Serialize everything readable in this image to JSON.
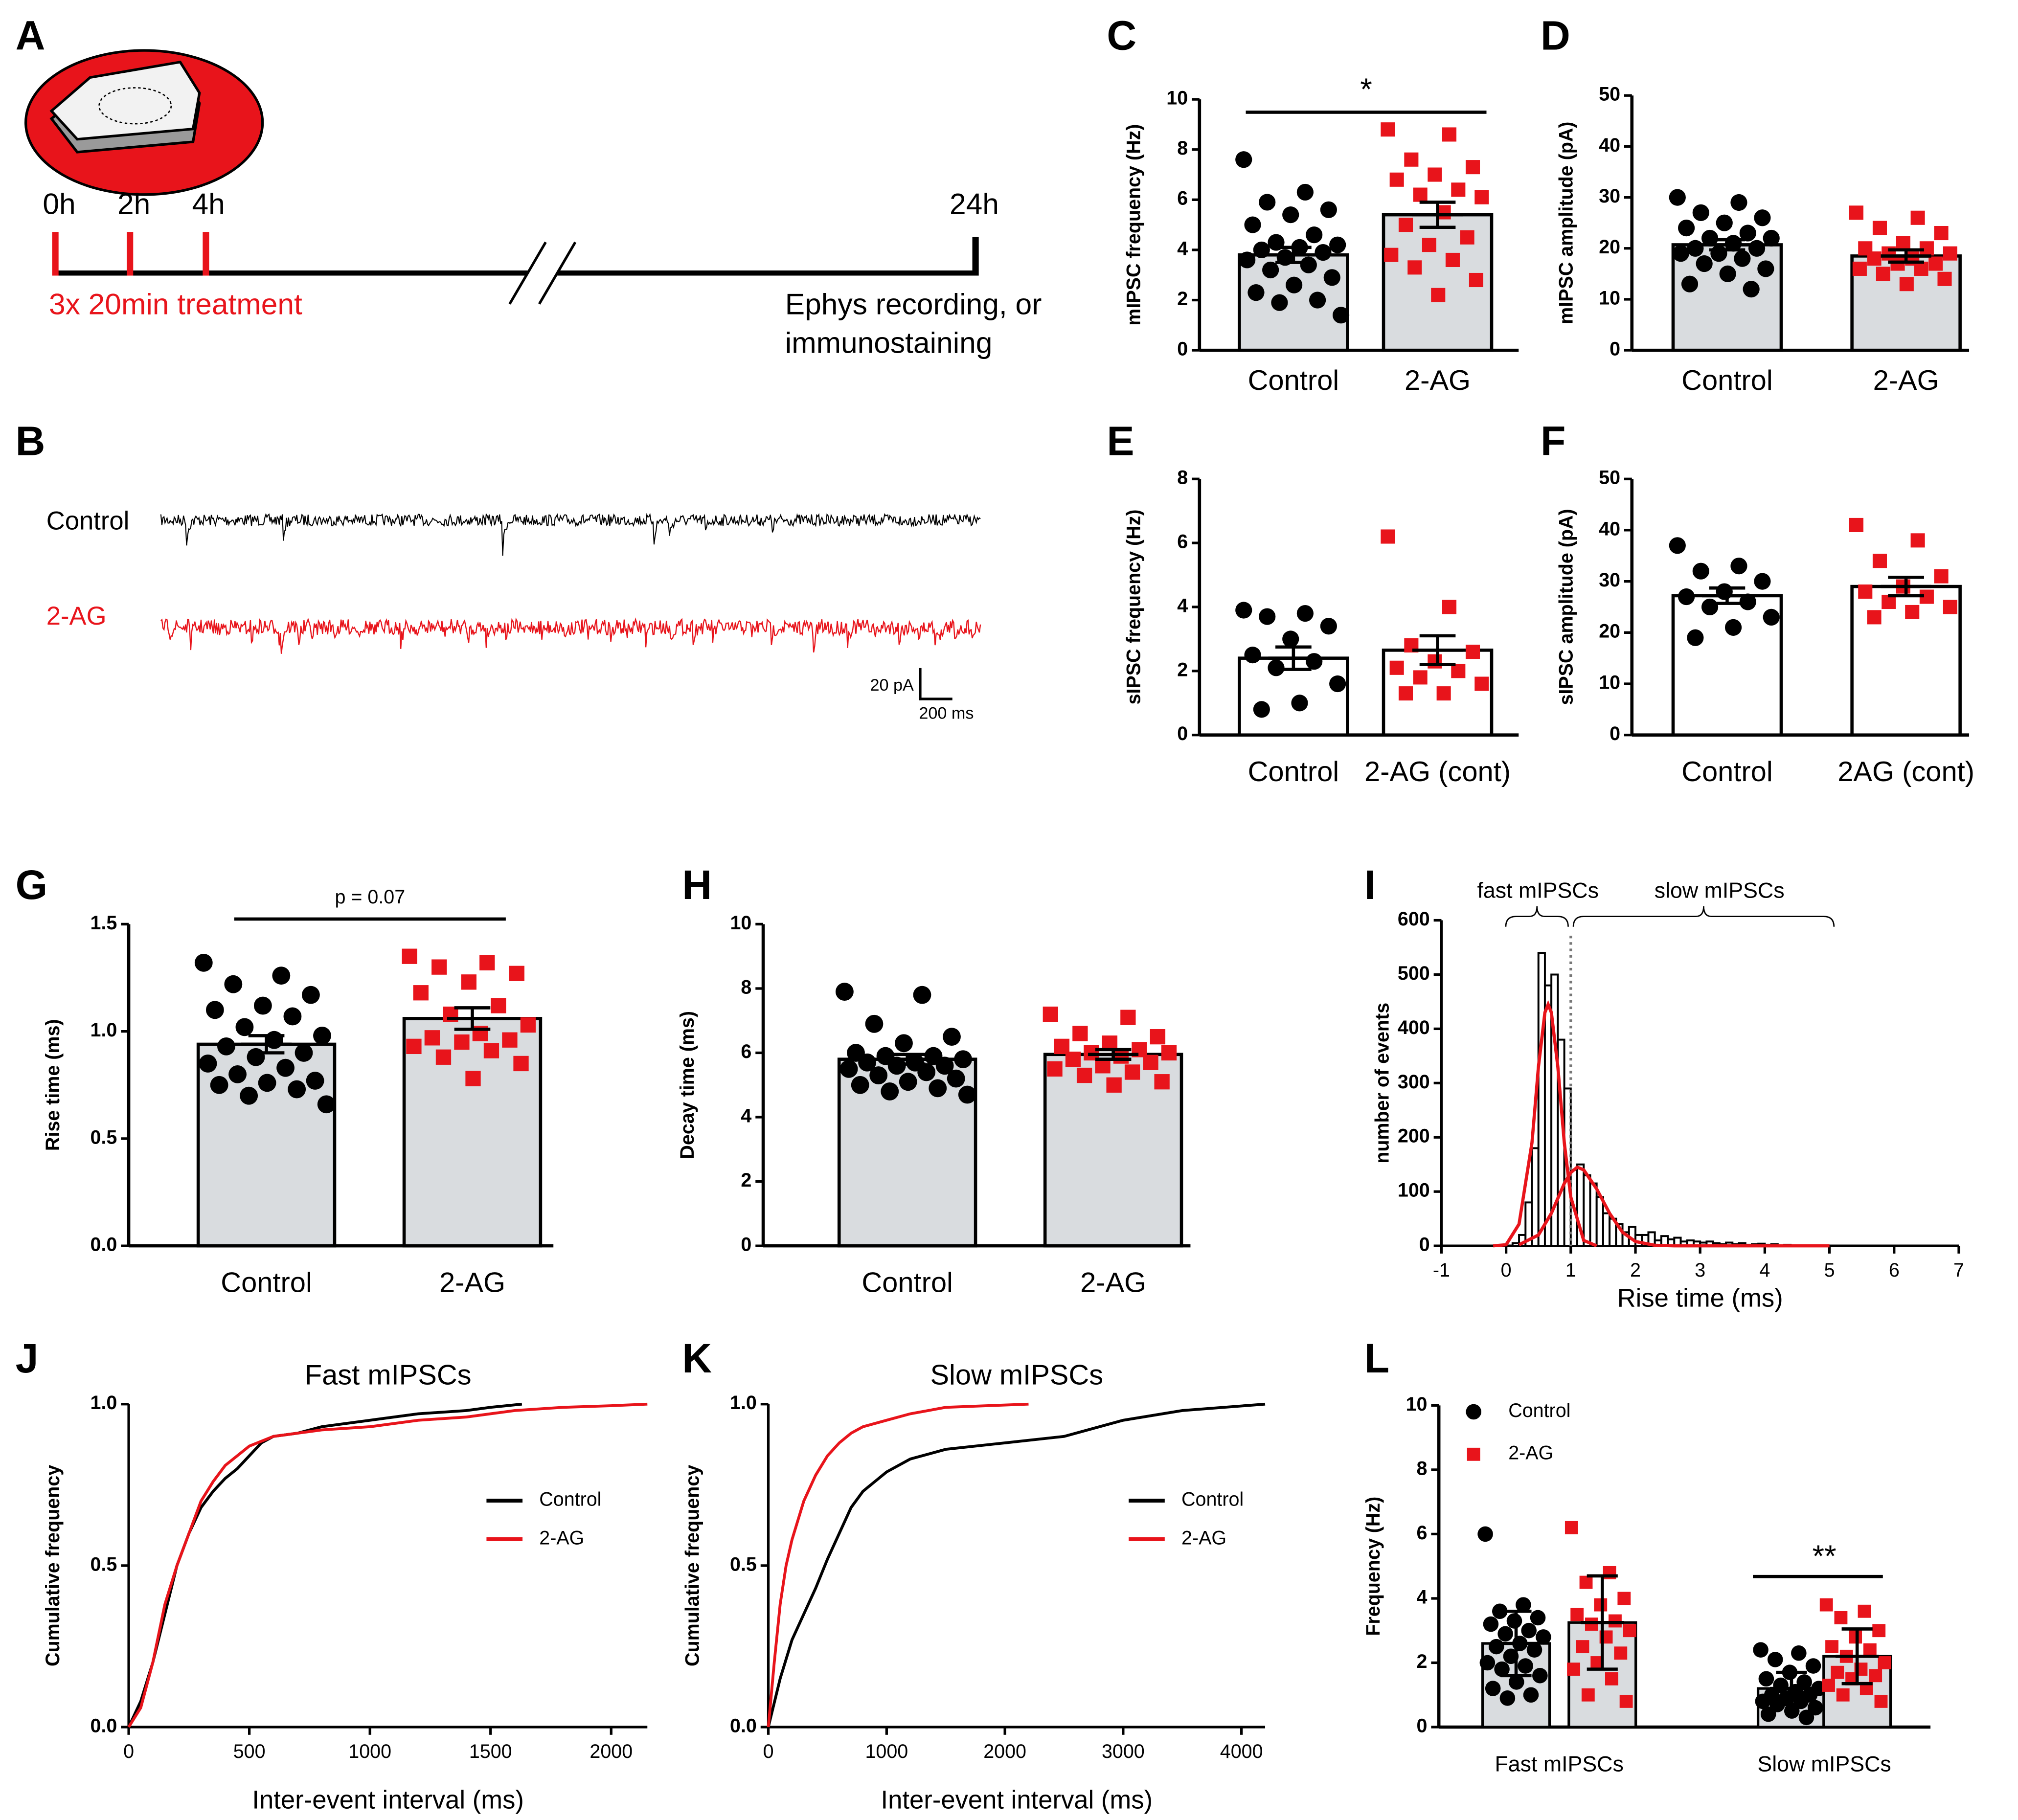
{
  "panel_letters": [
    "A",
    "B",
    "C",
    "D",
    "E",
    "F",
    "G",
    "H",
    "I",
    "J",
    "K",
    "L"
  ],
  "timeline": {
    "time_labels": [
      "0h",
      "2h",
      "4h",
      "24h"
    ],
    "treatment": "3x 20min treatment",
    "readout": [
      "Ephys recording, or",
      "immunostaining"
    ]
  },
  "traces": {
    "labels": [
      "Control",
      "2-AG"
    ],
    "colors": [
      "#000000",
      "#e8141b"
    ],
    "scale_y": "20 pA",
    "scale_x": "200 ms"
  },
  "chart_data": [
    {
      "type": "dot_bar",
      "ylabel": "mIPSC frequency (Hz)",
      "categories": [
        "Control",
        "2-AG"
      ],
      "values": [
        3.8,
        5.4
      ],
      "errors": [
        0.3,
        0.5
      ],
      "colors": [
        "#000000",
        "#e8141b"
      ],
      "markers": [
        "circle",
        "square"
      ],
      "bar_color": "#d9dcdf",
      "points": [
        [
          7.6,
          6.3,
          5.9,
          5.6,
          5.4,
          5.0,
          4.6,
          4.3,
          4.2,
          4.1,
          4.0,
          3.9,
          3.7,
          3.6,
          3.4,
          3.2,
          2.9,
          2.6,
          2.3,
          2.0,
          1.9,
          1.4
        ],
        [
          8.8,
          8.6,
          7.6,
          7.3,
          7.0,
          6.8,
          6.4,
          6.2,
          6.1,
          5.5,
          5.0,
          4.5,
          4.2,
          3.8,
          3.6,
          3.3,
          2.8,
          2.2
        ]
      ],
      "ylim": [
        0,
        10
      ],
      "yticks": [
        0,
        2,
        4,
        6,
        8,
        10
      ],
      "significance": "*"
    },
    {
      "type": "dot_bar",
      "ylabel": "mIPSC amplitude (pA)",
      "categories": [
        "Control",
        "2-AG"
      ],
      "values": [
        20.7,
        18.5
      ],
      "errors": [
        1.0,
        1.2
      ],
      "colors": [
        "#000000",
        "#e8141b"
      ],
      "markers": [
        "circle",
        "square"
      ],
      "bar_color": "#d9dcdf",
      "points": [
        [
          30,
          29,
          27,
          26,
          25,
          24,
          23,
          22,
          22,
          21,
          20,
          20,
          19,
          19,
          18,
          17,
          16,
          15,
          13,
          12
        ],
        [
          27,
          26,
          24,
          23,
          21,
          20,
          20,
          19,
          19,
          18,
          18,
          17,
          17,
          16,
          16,
          15,
          14,
          13
        ]
      ],
      "ylim": [
        0,
        50
      ],
      "yticks": [
        0,
        10,
        20,
        30,
        40,
        50
      ]
    },
    {
      "type": "dot_bar",
      "ylabel": "sIPSC frequency (Hz)",
      "categories": [
        "Control",
        "2-AG (cont)"
      ],
      "values": [
        2.4,
        2.65
      ],
      "errors": [
        0.35,
        0.45
      ],
      "colors": [
        "#000000",
        "#e8141b"
      ],
      "markers": [
        "circle",
        "square"
      ],
      "bar_color": "#ffffff",
      "points": [
        [
          3.9,
          3.8,
          3.7,
          3.4,
          3.0,
          2.5,
          2.3,
          2.1,
          1.6,
          1.0,
          0.8
        ],
        [
          6.2,
          4.0,
          2.8,
          2.6,
          2.3,
          2.1,
          2.0,
          1.8,
          1.6,
          1.3,
          1.3
        ]
      ],
      "ylim": [
        0,
        8
      ],
      "yticks": [
        0,
        2,
        4,
        6,
        8
      ]
    },
    {
      "type": "dot_bar",
      "ylabel": "sIPSC amplitude (pA)",
      "categories": [
        "Control",
        "2AG (cont)"
      ],
      "values": [
        27.2,
        29
      ],
      "errors": [
        1.5,
        1.8
      ],
      "colors": [
        "#000000",
        "#e8141b"
      ],
      "markers": [
        "circle",
        "square"
      ],
      "bar_color": "#ffffff",
      "points": [
        [
          37,
          33,
          32,
          30,
          28,
          27,
          26,
          25,
          23,
          21,
          19
        ],
        [
          41,
          38,
          34,
          31,
          29,
          28,
          27,
          26,
          25,
          24,
          23
        ]
      ],
      "ylim": [
        0,
        50
      ],
      "yticks": [
        0,
        10,
        20,
        30,
        40,
        50
      ]
    },
    {
      "type": "dot_bar",
      "ylabel": "Rise time (ms)",
      "categories": [
        "Control",
        "2-AG"
      ],
      "values": [
        0.94,
        1.06
      ],
      "errors": [
        0.04,
        0.05
      ],
      "colors": [
        "#000000",
        "#e8141b"
      ],
      "markers": [
        "circle",
        "square"
      ],
      "bar_color": "#d9dcdf",
      "points": [
        [
          1.32,
          1.26,
          1.22,
          1.17,
          1.12,
          1.1,
          1.07,
          1.02,
          0.98,
          0.96,
          0.93,
          0.9,
          0.88,
          0.85,
          0.83,
          0.8,
          0.77,
          0.76,
          0.75,
          0.73,
          0.7,
          0.66
        ],
        [
          1.35,
          1.32,
          1.3,
          1.27,
          1.23,
          1.18,
          1.12,
          1.08,
          1.03,
          0.99,
          0.97,
          0.96,
          0.95,
          0.93,
          0.91,
          0.88,
          0.85,
          0.78
        ]
      ],
      "ylim": [
        0,
        1.5
      ],
      "yticks": [
        {
          "value": 0,
          "label": "0.0"
        },
        0.5,
        {
          "value": 1,
          "label": "1.0"
        },
        1.5
      ],
      "significance": "p = 0.07"
    },
    {
      "type": "dot_bar",
      "ylabel": "Decay time (ms)",
      "categories": [
        "Control",
        "2-AG"
      ],
      "values": [
        5.8,
        5.95
      ],
      "errors": [
        0.15,
        0.15
      ],
      "colors": [
        "#000000",
        "#e8141b"
      ],
      "markers": [
        "circle",
        "square"
      ],
      "bar_color": "#d9dcdf",
      "points": [
        [
          7.9,
          7.8,
          6.9,
          6.5,
          6.3,
          6.0,
          5.9,
          5.9,
          5.8,
          5.7,
          5.7,
          5.6,
          5.6,
          5.5,
          5.4,
          5.3,
          5.2,
          5.1,
          5.0,
          4.9,
          4.8,
          4.7
        ],
        [
          7.2,
          7.1,
          6.6,
          6.5,
          6.3,
          6.2,
          6.1,
          6.0,
          6.0,
          5.9,
          5.8,
          5.7,
          5.6,
          5.5,
          5.4,
          5.3,
          5.1,
          5.0
        ]
      ],
      "ylim": [
        0,
        10
      ],
      "yticks": [
        0,
        2,
        4,
        6,
        8,
        10
      ]
    },
    {
      "type": "histogram",
      "xlabel": "Rise time (ms)",
      "ylabel": "number of events",
      "color": "#000000",
      "bins": [
        0,
        0.1,
        0.2,
        0.3,
        0.4,
        0.5,
        0.6,
        0.7,
        0.8,
        0.9,
        1.0,
        1.1,
        1.2,
        1.3,
        1.4,
        1.5,
        1.6,
        1.7,
        1.8,
        1.9,
        2.0,
        2.1,
        2.2,
        2.3,
        2.4,
        2.5,
        2.6,
        2.7,
        2.8,
        2.9,
        3.0,
        3.1,
        3.2,
        3.3,
        3.4,
        3.5,
        3.6,
        3.7,
        3.8,
        3.9,
        4.0,
        4.1,
        4.2,
        4.3,
        4.4,
        4.5,
        4.6,
        4.7,
        4.8,
        4.9,
        5.0
      ],
      "values": [
        0,
        5,
        20,
        80,
        180,
        540,
        480,
        500,
        380,
        290,
        140,
        150,
        130,
        115,
        90,
        60,
        50,
        40,
        25,
        35,
        20,
        20,
        25,
        10,
        18,
        12,
        15,
        8,
        10,
        8,
        6,
        8,
        5,
        3,
        6,
        3,
        5,
        2,
        3,
        4,
        2,
        3,
        1,
        2,
        1,
        1,
        1,
        0,
        1,
        0
      ],
      "curves": [
        {
          "color": "#e8141b",
          "x": [
            -0.2,
            0,
            0.2,
            0.4,
            0.5,
            0.6,
            0.65,
            0.7,
            0.8,
            0.9,
            1.0,
            1.2,
            1.4
          ],
          "values": [
            0,
            2,
            40,
            190,
            330,
            430,
            445,
            430,
            330,
            190,
            90,
            10,
            0
          ]
        },
        {
          "color": "#e8141b",
          "x": [
            0.2,
            0.5,
            0.7,
            0.9,
            1.0,
            1.1,
            1.2,
            1.4,
            1.6,
            1.8,
            2.0,
            2.3,
            2.6,
            5.0
          ],
          "values": [
            2,
            20,
            60,
            115,
            135,
            145,
            140,
            105,
            60,
            25,
            8,
            1,
            0,
            0
          ]
        }
      ],
      "threshold": 1,
      "annotations": [
        "fast mIPSCs",
        "slow mIPSCs"
      ],
      "xlim": [
        -1,
        7
      ],
      "xticks": [
        -1,
        0,
        1,
        2,
        3,
        4,
        5,
        6,
        7
      ],
      "ylim": [
        0,
        600
      ],
      "yticks": [
        0,
        100,
        200,
        300,
        400,
        500,
        600
      ]
    },
    {
      "type": "line",
      "title": "Fast mIPSCs",
      "xlabel": "Inter-event interval (ms)",
      "ylabel": "Cumulative frequency",
      "series": [
        {
          "name": "Control",
          "color": "#000000",
          "x": [
            0,
            50,
            100,
            150,
            200,
            250,
            300,
            350,
            400,
            450,
            500,
            550,
            600,
            700,
            800,
            1000,
            1200,
            1400,
            1500,
            1630
          ],
          "values": [
            0,
            0.08,
            0.2,
            0.35,
            0.5,
            0.6,
            0.68,
            0.73,
            0.77,
            0.8,
            0.84,
            0.88,
            0.9,
            0.91,
            0.93,
            0.95,
            0.97,
            0.98,
            0.99,
            1.0
          ]
        },
        {
          "name": "2-AG",
          "color": "#e8141b",
          "x": [
            0,
            50,
            100,
            150,
            200,
            250,
            300,
            350,
            400,
            450,
            500,
            600,
            700,
            800,
            1000,
            1200,
            1400,
            1600,
            1800,
            2000,
            2150
          ],
          "values": [
            0,
            0.06,
            0.2,
            0.38,
            0.5,
            0.6,
            0.7,
            0.76,
            0.81,
            0.84,
            0.87,
            0.9,
            0.91,
            0.92,
            0.93,
            0.95,
            0.96,
            0.98,
            0.99,
            0.995,
            1.0
          ]
        }
      ],
      "xlim": [
        0,
        2150
      ],
      "xticks": [
        0,
        500,
        1000,
        1500,
        2000
      ],
      "ylim": [
        0,
        1
      ],
      "yticks": [
        {
          "value": 0,
          "label": "0.0"
        },
        0.5,
        {
          "value": 1,
          "label": "1.0"
        }
      ],
      "legend": "right"
    },
    {
      "type": "line",
      "title": "Slow mIPSCs",
      "xlabel": "Inter-event interval (ms)",
      "ylabel": "Cumulative frequency",
      "series": [
        {
          "name": "Control",
          "color": "#000000",
          "x": [
            0,
            100,
            200,
            300,
            400,
            500,
            600,
            700,
            800,
            900,
            1000,
            1200,
            1500,
            2000,
            2500,
            3000,
            3500,
            4200
          ],
          "values": [
            0,
            0.15,
            0.27,
            0.35,
            0.43,
            0.52,
            0.6,
            0.68,
            0.73,
            0.76,
            0.79,
            0.83,
            0.86,
            0.88,
            0.9,
            0.95,
            0.98,
            1.0
          ]
        },
        {
          "name": "2-AG",
          "color": "#e8141b",
          "x": [
            0,
            50,
            100,
            150,
            200,
            300,
            400,
            500,
            600,
            700,
            800,
            1000,
            1200,
            1500,
            2200
          ],
          "values": [
            0,
            0.2,
            0.38,
            0.5,
            0.58,
            0.7,
            0.78,
            0.84,
            0.88,
            0.91,
            0.93,
            0.95,
            0.97,
            0.99,
            1.0
          ]
        }
      ],
      "xlim": [
        0,
        4200
      ],
      "xticks": [
        0,
        1000,
        2000,
        3000,
        4000
      ],
      "ylim": [
        0,
        1
      ],
      "yticks": [
        {
          "value": 0,
          "label": "0.0"
        },
        0.5,
        {
          "value": 1,
          "label": "1.0"
        }
      ],
      "legend": "right"
    },
    {
      "type": "grouped_dot_bar",
      "ylabel": "Frequency (Hz)",
      "categories": [
        "Fast mIPSCs",
        "Slow mIPSCs"
      ],
      "bar_color": "#d9dcdf",
      "series": [
        {
          "name": "Control",
          "color": "#000000",
          "marker": "circle",
          "values": [
            2.6,
            1.2
          ],
          "errors": [
            1.0,
            0.5
          ],
          "points": [
            [
              6.0,
              3.8,
              3.6,
              3.4,
              3.3,
              3.2,
              3.0,
              2.9,
              2.8,
              2.6,
              2.5,
              2.4,
              2.2,
              2.0,
              1.9,
              1.8,
              1.6,
              1.4,
              1.2,
              1.0,
              0.9
            ],
            [
              2.4,
              2.3,
              2.1,
              1.9,
              1.7,
              1.5,
              1.4,
              1.3,
              1.2,
              1.1,
              1.0,
              1.0,
              0.9,
              0.8,
              0.8,
              0.7,
              0.6,
              0.5,
              0.4,
              0.3
            ]
          ]
        },
        {
          "name": "2-AG",
          "color": "#e8141b",
          "marker": "square",
          "values": [
            3.25,
            2.2
          ],
          "errors": [
            1.45,
            0.85
          ],
          "points": [
            [
              6.2,
              4.8,
              4.5,
              4.0,
              3.8,
              3.5,
              3.3,
              3.2,
              3.0,
              2.8,
              2.5,
              2.3,
              2.0,
              1.8,
              1.5,
              1.0,
              0.8
            ],
            [
              3.8,
              3.6,
              3.4,
              3.0,
              2.8,
              2.5,
              2.4,
              2.2,
              2.0,
              1.8,
              1.7,
              1.6,
              1.5,
              1.3,
              1.2,
              1.0,
              0.8
            ]
          ]
        }
      ],
      "significance": [
        null,
        "**"
      ],
      "ylim": [
        0,
        10
      ],
      "yticks": [
        0,
        2,
        4,
        6,
        8,
        10
      ],
      "legend": "top-left"
    }
  ]
}
